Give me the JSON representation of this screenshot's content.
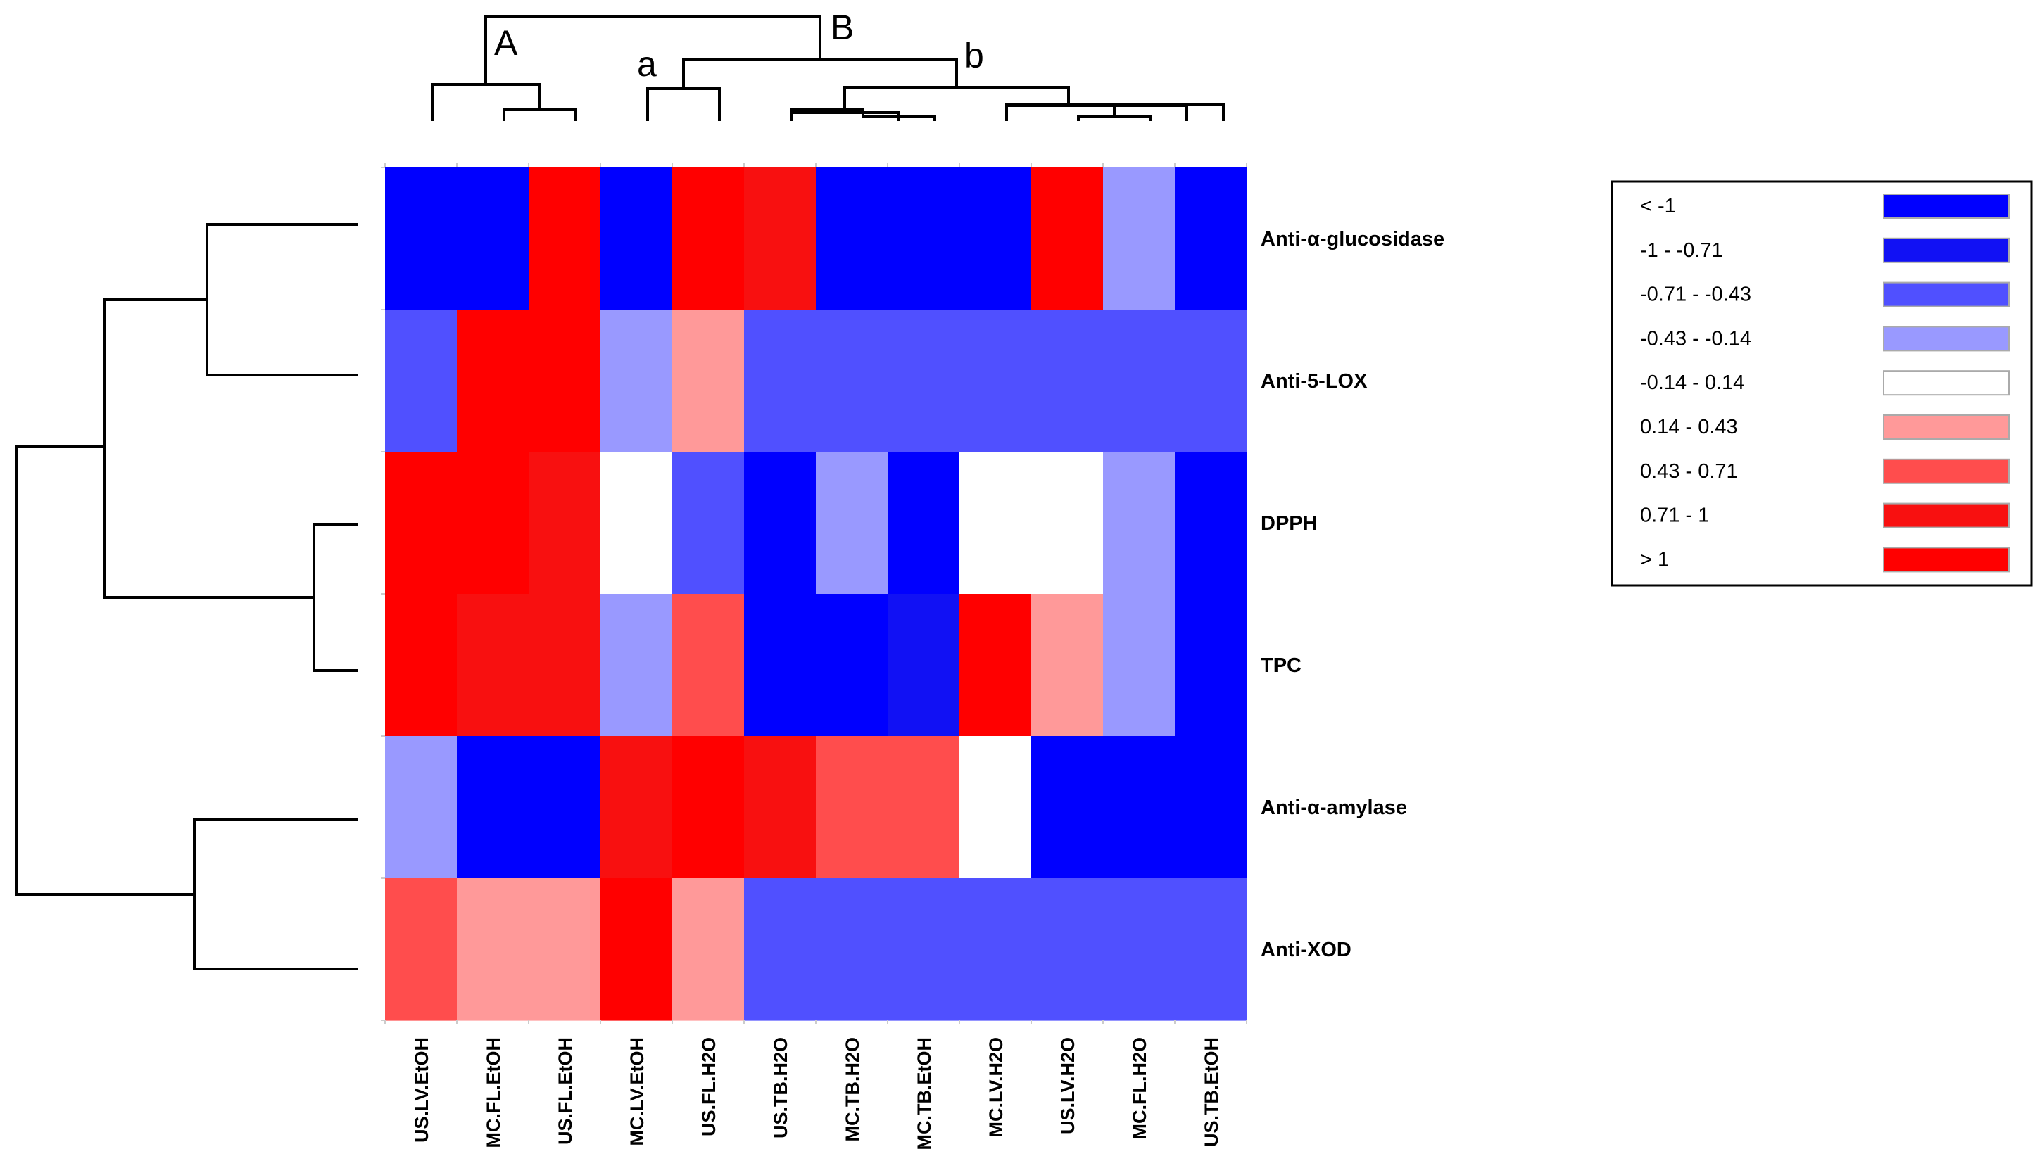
{
  "chart_data": {
    "type": "heatmap",
    "title": "",
    "rows": [
      "Anti-α-glucosidase",
      "Anti-5-LOX",
      "DPPH",
      "TPC",
      "Anti-α-amylase",
      "Anti-XOD"
    ],
    "columns": [
      "US.LV.EtOH",
      "MC.FL.EtOH",
      "US.FL.EtOH",
      "MC.LV.EtOH",
      "US.FL.H2O",
      "US.TB.H2O",
      "MC.TB.H2O",
      "MC.TB.EtOH",
      "MC.LV.H2O",
      "US.LV.H2O",
      "MC.FL.H2O",
      "US.TB.EtOH"
    ],
    "values": [
      [
        -1.2,
        -1.2,
        1.2,
        -1.2,
        1.2,
        0.9,
        -1.2,
        -1.2,
        -1.2,
        1.2,
        -0.3,
        -1.2
      ],
      [
        -0.6,
        1.2,
        1.2,
        -0.3,
        0.3,
        -0.6,
        -0.6,
        -0.6,
        -0.6,
        -0.6,
        -0.6,
        -0.6
      ],
      [
        1.2,
        1.2,
        0.9,
        0.0,
        -0.6,
        -1.2,
        -0.3,
        -1.2,
        0.0,
        0.0,
        -0.3,
        -1.2
      ],
      [
        1.2,
        0.9,
        0.9,
        -0.3,
        0.6,
        -1.2,
        -1.2,
        -0.9,
        1.2,
        0.3,
        -0.3,
        -1.2
      ],
      [
        -0.3,
        -1.2,
        -1.2,
        0.9,
        1.2,
        0.9,
        0.6,
        0.6,
        0.0,
        -1.2,
        -1.2,
        -1.2
      ],
      [
        0.6,
        0.3,
        0.3,
        1.2,
        0.3,
        -0.6,
        -0.6,
        -0.6,
        -0.6,
        -0.6,
        -0.6,
        -0.6
      ]
    ],
    "legend": [
      {
        "label": "< -1",
        "color": "#0000ff"
      },
      {
        "label": "-1 - -0.71",
        "color": "#1111f4"
      },
      {
        "label": "-0.71 - -0.43",
        "color": "#5050ff"
      },
      {
        "label": "-0.43 - -0.14",
        "color": "#9999ff"
      },
      {
        "label": "-0.14 - 0.14",
        "color": "#ffffff"
      },
      {
        "label": "0.14 - 0.43",
        "color": "#ff9999"
      },
      {
        "label": "0.43 - 0.71",
        "color": "#ff4d4d"
      },
      {
        "label": "0.71 - 1",
        "color": "#f81010"
      },
      {
        "label": "> 1",
        "color": "#ff0000"
      }
    ],
    "column_clusters": [
      "A",
      "B",
      "a",
      "b"
    ],
    "legend_position": "right"
  }
}
